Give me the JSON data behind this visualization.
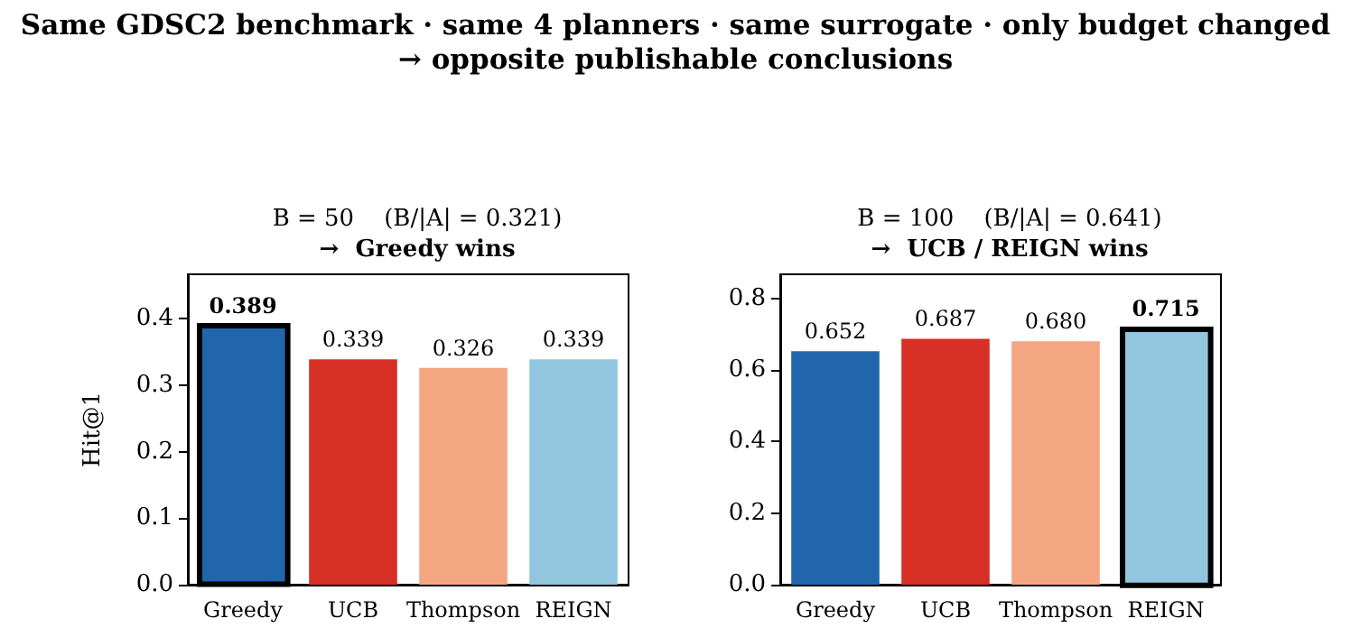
{
  "chart_data": [
    {
      "type": "bar",
      "title": "B = 50    (B/|A| = 0.321)",
      "subtitle": "→  Greedy wins",
      "ylabel": "Hit@1",
      "categories": [
        "Greedy",
        "UCB",
        "Thompson",
        "REIGN"
      ],
      "values": [
        0.389,
        0.339,
        0.326,
        0.339
      ],
      "colors": [
        "#2166ac",
        "#d73027",
        "#f4a582",
        "#92c5de"
      ],
      "value_labels": [
        null,
        "0.339",
        "0.326",
        "0.339"
      ],
      "ylim": [
        0,
        0.467
      ],
      "yticks": [
        {
          "value": 0,
          "label": "0.0"
        },
        {
          "value": 0.1,
          "label": "0.1"
        },
        {
          "value": 0.2,
          "label": "0.2"
        },
        {
          "value": 0.3,
          "label": "0.3"
        },
        {
          "value": 0.4,
          "label": "0.4"
        }
      ],
      "grid": false,
      "annotations": [
        "Same GDSC2 benchmark · same 4 planners · same surrogate · only budget changed\n→ opposite publishable conclusions",
        {
          "text": "0.389",
          "x": "Greedy",
          "y": 0.389
        }
      ]
    },
    {
      "type": "bar",
      "title": "B = 100    (B/|A| = 0.641)",
      "subtitle": "→  UCB / REIGN wins",
      "categories": [
        "Greedy",
        "UCB",
        "Thompson",
        "REIGN"
      ],
      "values": [
        0.652,
        0.687,
        0.68,
        0.715
      ],
      "colors": [
        "#2166ac",
        "#d73027",
        "#f4a582",
        "#92c5de"
      ],
      "value_labels": [
        "0.652",
        "0.687",
        "0.680",
        null
      ],
      "ylim": [
        0,
        0.867
      ],
      "yticks": [
        {
          "value": 0,
          "label": "0.0"
        },
        {
          "value": 0.2,
          "label": "0.2"
        },
        {
          "value": 0.4,
          "label": "0.4"
        },
        {
          "value": 0.6,
          "label": "0.6"
        },
        {
          "value": 0.8,
          "label": "0.8"
        }
      ],
      "grid": false,
      "annotations": [
        {
          "text": "0.715",
          "x": "REIGN",
          "y": 0.715
        }
      ]
    }
  ]
}
